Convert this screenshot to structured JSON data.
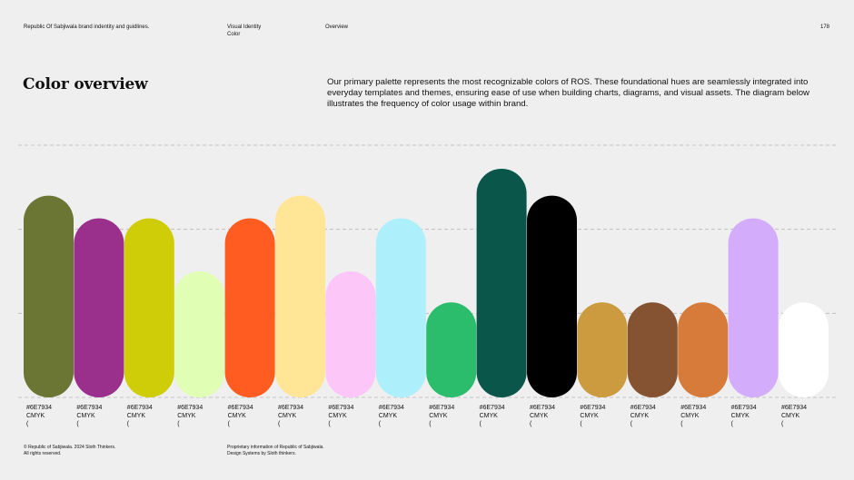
{
  "header": {
    "brand": "Republic Of Sabjiwala brand indentity and guidlines.",
    "section_line1": "Visual Identity",
    "section_line2": "Color",
    "page_title": "Overview",
    "page_number": "178"
  },
  "main": {
    "title": "Color overview",
    "intro": "Our primary palette represents the most recognizable colors of ROS. These foundational hues are seamlessly integrated into everyday templates and themes, ensuring ease of use when building charts, diagrams, and visual assets. The diagram below illustrates the frequency of color usage within brand."
  },
  "chart_data": {
    "type": "bar",
    "levels": 3,
    "gridlines": 4,
    "values": [
      2.4,
      2.13,
      2.13,
      1.5,
      2.13,
      2.4,
      1.5,
      2.13,
      1.13,
      2.72,
      2.4,
      1.13,
      1.13,
      1.13,
      2.13,
      1.13
    ],
    "colors": [
      "#6b7534",
      "#9a2f8c",
      "#cfcc08",
      "#e0ffb4",
      "#ff5c22",
      "#ffe595",
      "#fcc6f8",
      "#aeeffc",
      "#2bbd6b",
      "#0a564a",
      "#000000",
      "#cc9b40",
      "#855331",
      "#d67b39",
      "#d3adfc",
      "#ffffff"
    ]
  },
  "swatches": [
    {
      "hex": "#6E7934",
      "cmyk": "CMYK",
      "rgb": "("
    },
    {
      "hex": "#6E7934",
      "cmyk": "CMYK",
      "rgb": "("
    },
    {
      "hex": "#6E7934",
      "cmyk": "CMYK",
      "rgb": "("
    },
    {
      "hex": "#6E7934",
      "cmyk": "CMYK",
      "rgb": "("
    },
    {
      "hex": "#6E7934",
      "cmyk": "CMYK",
      "rgb": "("
    },
    {
      "hex": "#6E7934",
      "cmyk": "CMYK",
      "rgb": "("
    },
    {
      "hex": "#6E7934",
      "cmyk": "CMYK",
      "rgb": "("
    },
    {
      "hex": "#6E7934",
      "cmyk": "CMYK",
      "rgb": "("
    },
    {
      "hex": "#6E7934",
      "cmyk": "CMYK",
      "rgb": "("
    },
    {
      "hex": "#6E7934",
      "cmyk": "CMYK",
      "rgb": "("
    },
    {
      "hex": "#6E7934",
      "cmyk": "CMYK",
      "rgb": "("
    },
    {
      "hex": "#6E7934",
      "cmyk": "CMYK",
      "rgb": "("
    },
    {
      "hex": "#6E7934",
      "cmyk": "CMYK",
      "rgb": "("
    },
    {
      "hex": "#6E7934",
      "cmyk": "CMYK",
      "rgb": "("
    },
    {
      "hex": "#6E7934",
      "cmyk": "CMYK",
      "rgb": "("
    },
    {
      "hex": "#6E7934",
      "cmyk": "CMYK",
      "rgb": "("
    }
  ],
  "footer": {
    "left_line1": "© Republic of Sabjiwala. 2024 Sloth Thinkers.",
    "left_line2": "All rights reserved.",
    "mid_line1": "Proprietary information of Republic of Sabjiwala.",
    "mid_line2": "Design Systems by Sloth thinkers."
  }
}
